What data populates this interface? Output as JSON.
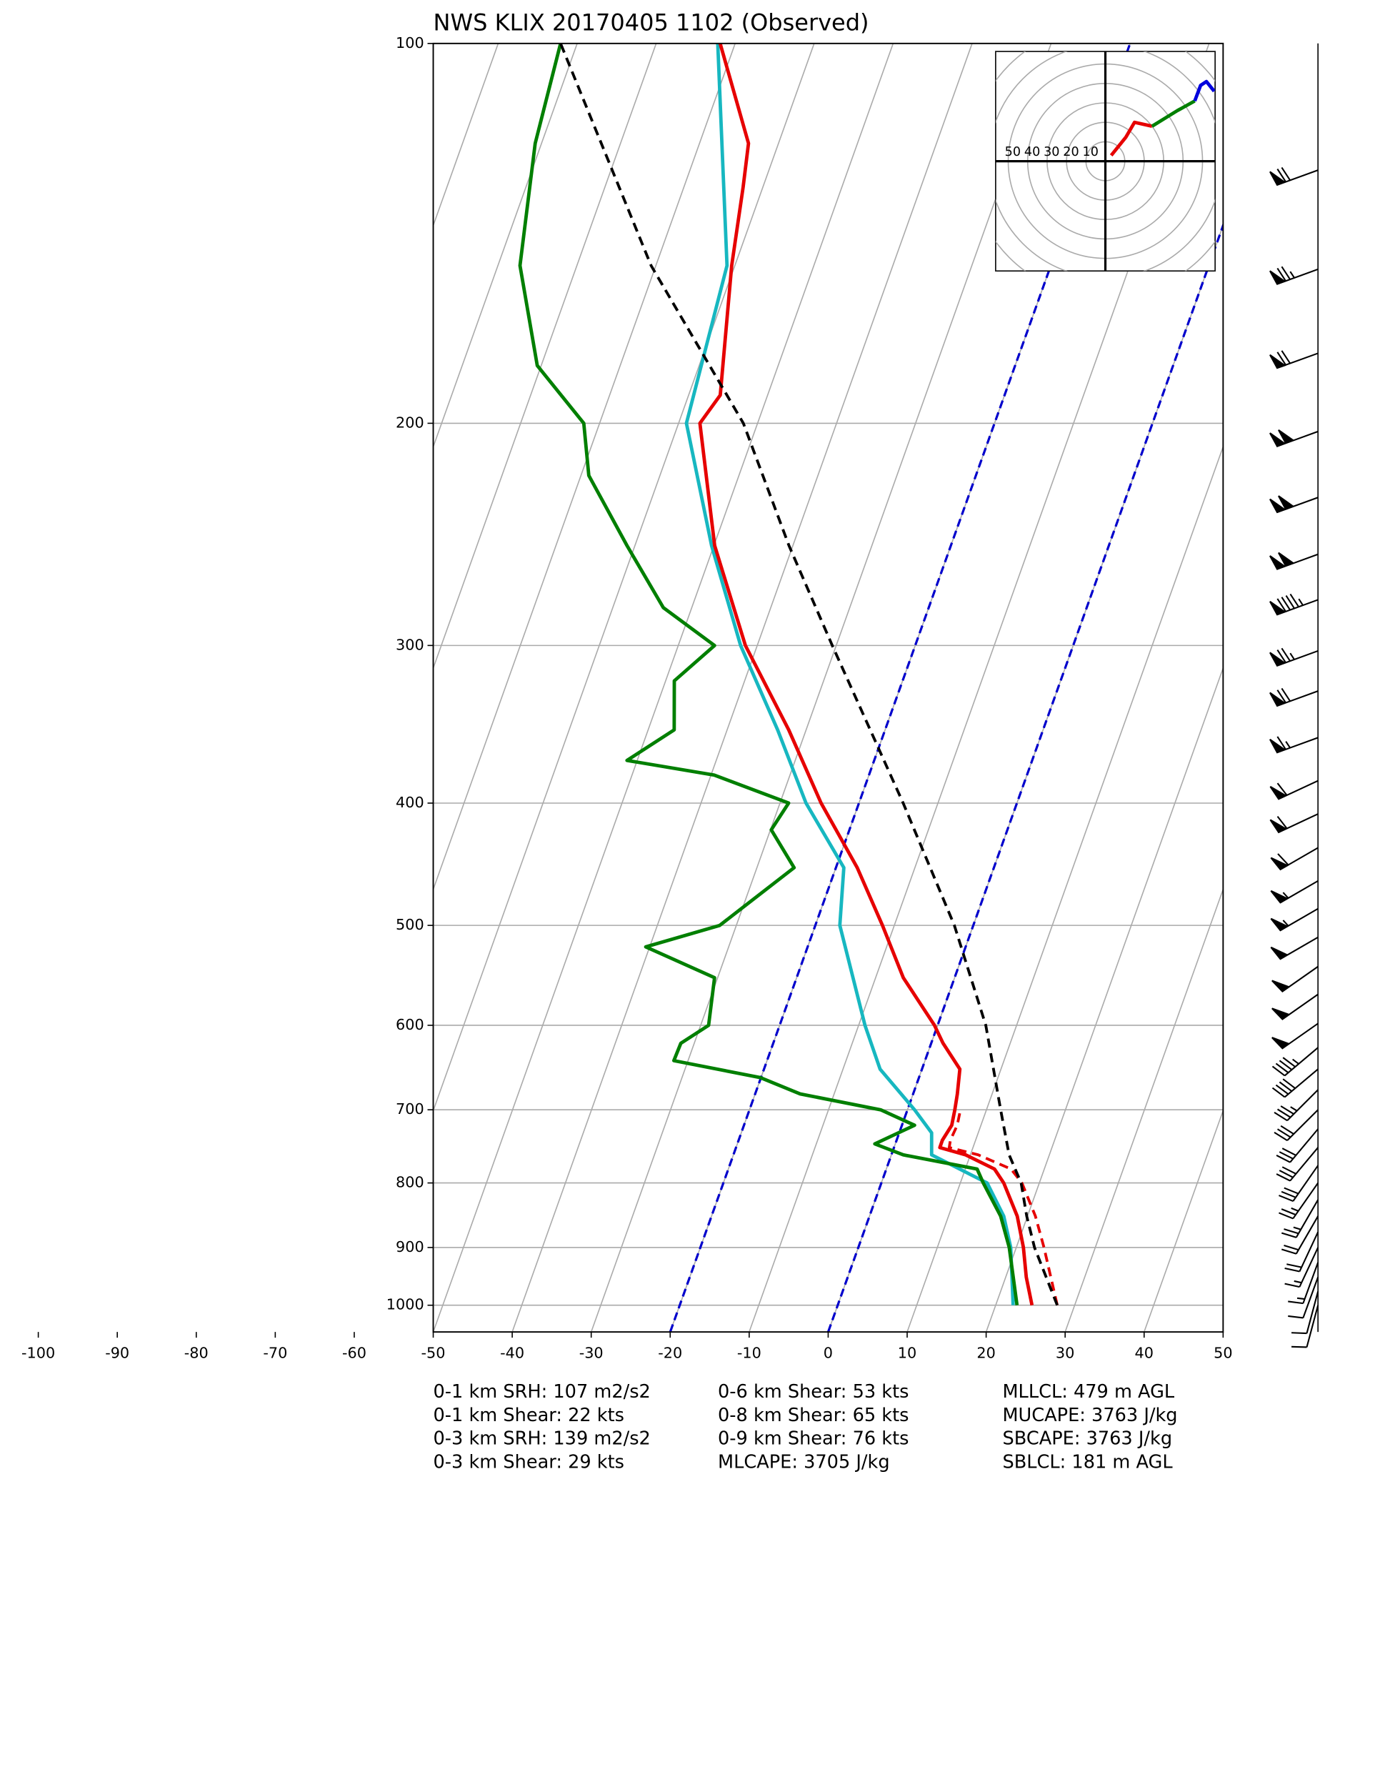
{
  "chart_data": {
    "type": "skewt",
    "title": "NWS KLIX 20170405 1102   (Observed)",
    "ylim": [
      1050,
      100
    ],
    "yticks": [
      100,
      200,
      300,
      400,
      500,
      600,
      700,
      800,
      900,
      1000
    ],
    "xlim": [
      -50,
      50
    ],
    "xticks": [
      -100,
      -90,
      -80,
      -70,
      -60,
      -50,
      -40,
      -30,
      -20,
      -10,
      0,
      10,
      20,
      30,
      40,
      50
    ],
    "log_scale_y": true,
    "grid": true,
    "highlight_isotherms": {
      "color": "#0000cc",
      "values": [
        -20,
        0
      ]
    },
    "series": [
      {
        "color": "#17b7c0",
        "linestyle": "solid",
        "pressure": [
          1000,
          900,
          850,
          800,
          760,
          730,
          700,
          650,
          600,
          500,
          450,
          400,
          350,
          300,
          250,
          200,
          150,
          100
        ],
        "values": [
          22.2,
          19.3,
          17.0,
          13.4,
          5.1,
          4.1,
          0.9,
          -5.3,
          -9.2,
          -16.9,
          -19.0,
          -26.7,
          -33.6,
          -42.1,
          -50.3,
          -59.0,
          -61.0,
          -72.2
        ]
      },
      {
        "color": "#007f00",
        "linestyle": "solid",
        "pressure": [
          1000,
          900,
          850,
          800,
          780,
          760,
          745,
          720,
          700,
          680,
          660,
          640,
          620,
          600,
          550,
          520,
          500,
          450,
          420,
          400,
          380,
          370,
          350,
          320,
          300,
          280,
          250,
          220,
          200,
          180,
          150,
          120,
          100
        ],
        "values": [
          22.7,
          19.1,
          16.6,
          12.9,
          11.5,
          1.5,
          -2.6,
          1.6,
          -3.4,
          -14.3,
          -20.1,
          -31.8,
          -31.7,
          -29.0,
          -30.4,
          -40.5,
          -32.1,
          -25.3,
          -29.9,
          -28.9,
          -39.6,
          -51.3,
          -46.7,
          -48.9,
          -45.4,
          -53.6,
          -61.0,
          -69.0,
          -72.0,
          -80.5,
          -87.2,
          -90.8,
          -92.1
        ]
      },
      {
        "color": "#e60000",
        "linestyle": "solid",
        "pressure": [
          1000,
          950,
          900,
          850,
          800,
          780,
          760,
          750,
          740,
          720,
          700,
          680,
          650,
          620,
          600,
          550,
          500,
          450,
          400,
          350,
          300,
          250,
          200,
          190,
          150,
          130,
          120,
          100
        ],
        "values": [
          24.6,
          22.6,
          20.9,
          18.7,
          15.5,
          13.7,
          9.4,
          5.8,
          5.8,
          6.3,
          6.0,
          5.6,
          4.8,
          1.5,
          -0.4,
          -6.5,
          -11.5,
          -17.3,
          -24.8,
          -32.2,
          -41.5,
          -49.9,
          -57.3,
          -56.0,
          -60.4,
          -62.5,
          -63.8,
          -71.9
        ]
      },
      {
        "color": "#e60000",
        "linestyle": "dashed",
        "pressure": [
          1000,
          900,
          850,
          800,
          780,
          760,
          750,
          740,
          720,
          700
        ],
        "values": [
          27.8,
          23.5,
          21.0,
          17.8,
          15.8,
          11.0,
          7.0,
          6.8,
          7.0,
          6.7
        ]
      },
      {
        "color": "#000000",
        "linestyle": "dashed",
        "pressure": [
          1000,
          900,
          850,
          800,
          760,
          700,
          600,
          500,
          400,
          300,
          250,
          200,
          150,
          100
        ],
        "values": [
          27.8,
          22.3,
          19.9,
          17.7,
          14.9,
          11.8,
          6.1,
          -2.4,
          -14.4,
          -30.5,
          -40.5,
          -51.8,
          -70.6,
          -92.1
        ]
      }
    ],
    "hodograph": {
      "ring_labels": [
        50,
        40,
        30,
        20,
        10
      ],
      "segments": [
        {
          "color": "#e60000",
          "u": [
            3,
            10.6,
            15,
            24
          ],
          "v": [
            3,
            12.4,
            20,
            18
          ]
        },
        {
          "color": "#007f00",
          "u": [
            24,
            37,
            46
          ],
          "v": [
            18,
            26,
            31
          ]
        },
        {
          "color": "#0000dd",
          "u": [
            46,
            49,
            52,
            56
          ],
          "v": [
            31,
            39,
            41,
            36
          ]
        }
      ]
    },
    "wind_barbs": {
      "pressure": [
        126,
        151,
        176,
        203,
        229,
        254,
        276,
        303,
        326,
        355,
        384,
        408,
        434,
        461,
        485,
        511,
        539,
        567,
        598,
        625,
        650,
        675,
        700,
        725,
        750,
        775,
        800,
        825,
        850,
        875,
        900,
        925,
        950,
        975,
        1000
      ],
      "speed": [
        70,
        75,
        70,
        100,
        100,
        100,
        95,
        75,
        70,
        65,
        60,
        60,
        60,
        55,
        55,
        50,
        50,
        50,
        50,
        45,
        40,
        35,
        30,
        30,
        30,
        30,
        25,
        25,
        20,
        20,
        15,
        15,
        10,
        10,
        10
      ],
      "direction": [
        250,
        250,
        250,
        250,
        250,
        250,
        250,
        250,
        250,
        250,
        245,
        245,
        240,
        240,
        240,
        240,
        235,
        235,
        235,
        230,
        230,
        225,
        225,
        220,
        220,
        215,
        215,
        210,
        210,
        205,
        205,
        200,
        200,
        195,
        195
      ]
    },
    "stats": [
      [
        "0-1 km SRH: 107 m2/s2",
        "0-1 km Shear: 22 kts",
        "0-3 km SRH: 139 m2/s2",
        "0-3 km Shear: 29 kts"
      ],
      [
        "0-6 km Shear: 53 kts",
        "0-8 km Shear: 65 kts",
        "0-9 km Shear: 76 kts",
        "MLCAPE: 3705 J/kg"
      ],
      [
        "MLLCL: 479 m AGL",
        "MUCAPE: 3763 J/kg",
        "SBCAPE: 3763 J/kg",
        "SBLCL: 181 m AGL"
      ]
    ]
  }
}
